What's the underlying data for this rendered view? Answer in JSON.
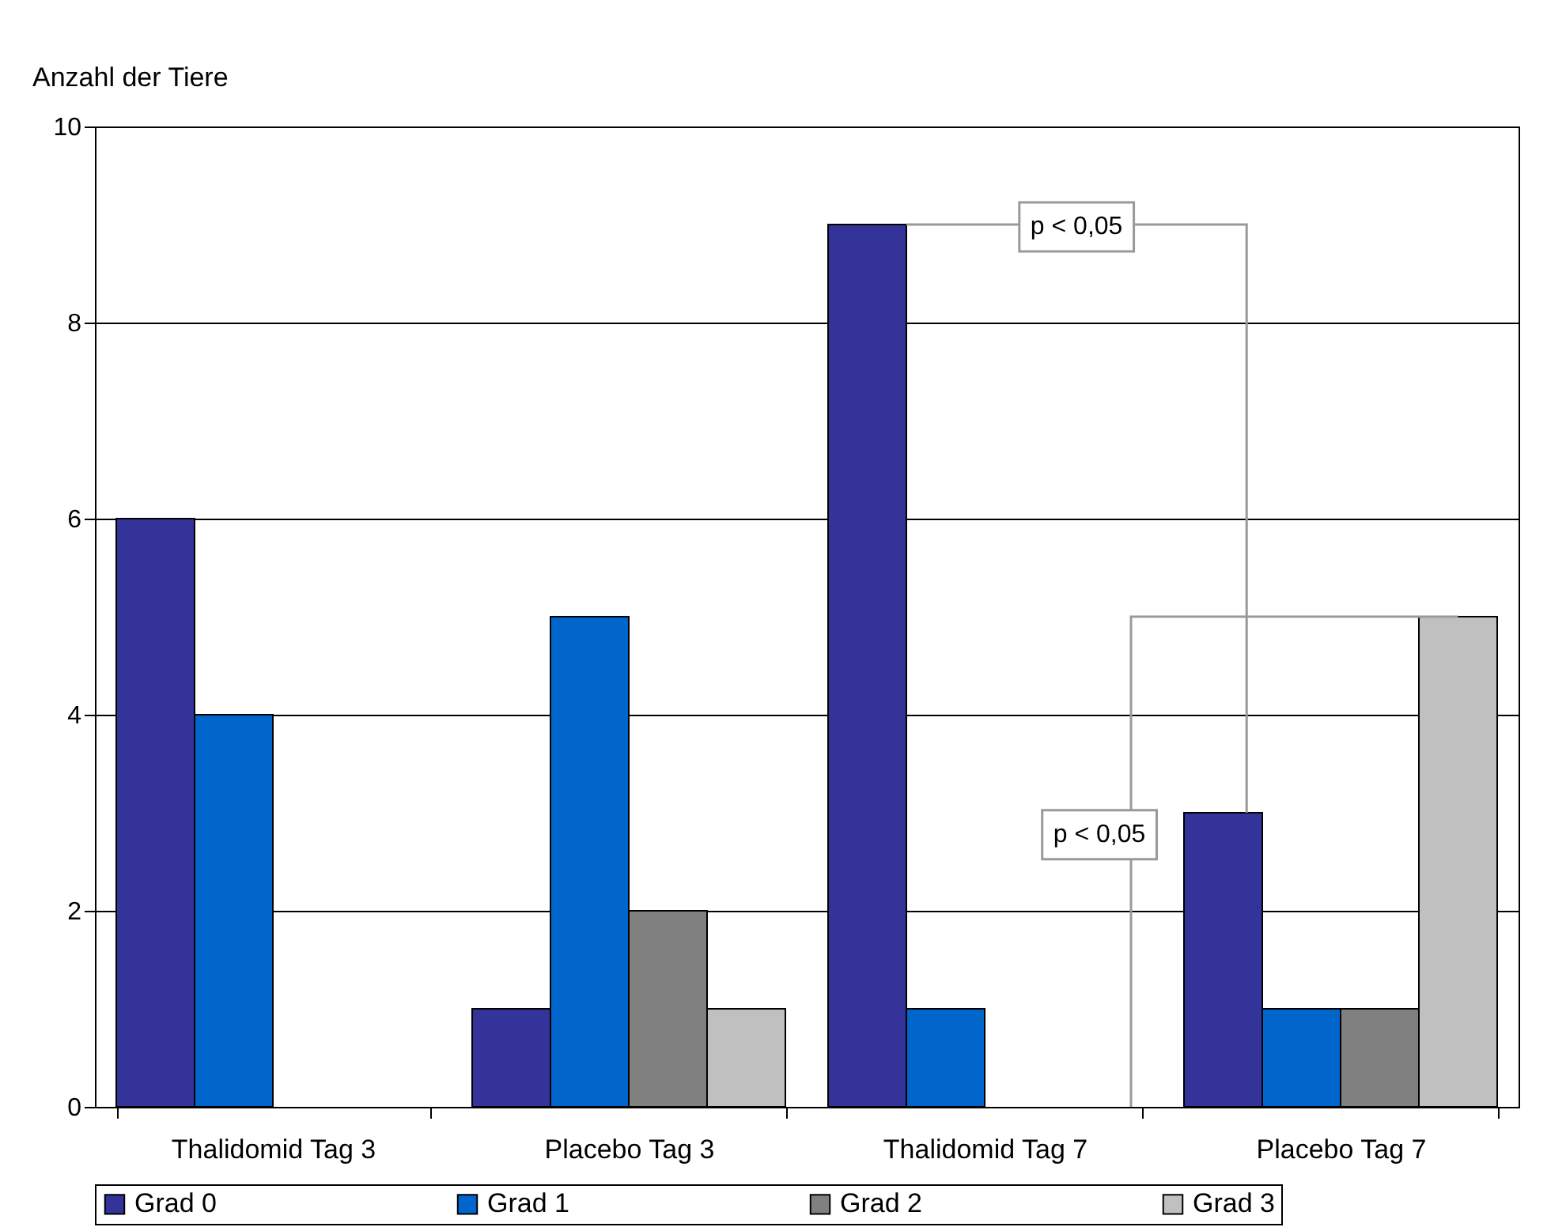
{
  "chart_data": {
    "type": "bar",
    "ylabel": "Anzahl der Tiere",
    "categories": [
      "Thalidomid Tag 3",
      "Placebo Tag 3",
      "Thalidomid Tag 7",
      "Placebo Tag 7"
    ],
    "series": [
      {
        "name": "Grad 0",
        "color": "#333399",
        "values": [
          6,
          1,
          9,
          3
        ]
      },
      {
        "name": "Grad 1",
        "color": "#0066cc",
        "values": [
          4,
          5,
          1,
          1
        ]
      },
      {
        "name": "Grad 2",
        "color": "#808080",
        "values": [
          0,
          2,
          0,
          1
        ]
      },
      {
        "name": "Grad 3",
        "color": "#c0c0c0",
        "values": [
          0,
          1,
          0,
          5
        ]
      }
    ],
    "ylim": [
      0,
      10
    ],
    "yticks": [
      0,
      2,
      4,
      6,
      8,
      10
    ],
    "grid": "y",
    "legend": "bottom",
    "annotations": [
      "p < 0,05",
      "p < 0,05"
    ]
  }
}
